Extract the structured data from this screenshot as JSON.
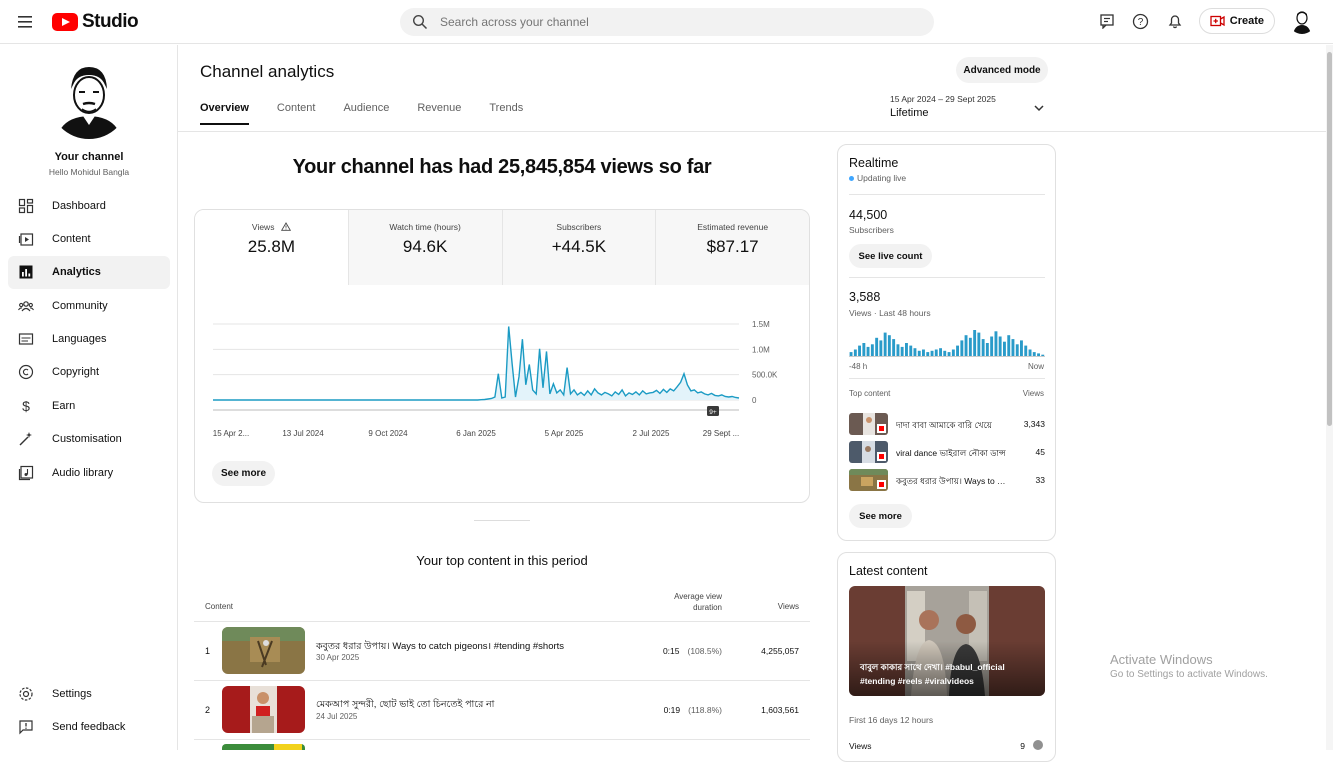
{
  "app": {
    "brand": "Studio",
    "search_placeholder": "Search across your channel",
    "create_label": "Create"
  },
  "sidebar": {
    "channel_name": "Your channel",
    "channel_handle": "Hello Mohidul Bangla",
    "items": [
      {
        "label": "Dashboard",
        "icon": "dashboard-icon"
      },
      {
        "label": "Content",
        "icon": "content-icon"
      },
      {
        "label": "Analytics",
        "icon": "analytics-icon",
        "active": true
      },
      {
        "label": "Community",
        "icon": "community-icon"
      },
      {
        "label": "Languages",
        "icon": "languages-icon"
      },
      {
        "label": "Copyright",
        "icon": "copyright-icon"
      },
      {
        "label": "Earn",
        "icon": "earn-icon"
      },
      {
        "label": "Customisation",
        "icon": "customisation-icon"
      },
      {
        "label": "Audio library",
        "icon": "audio-library-icon"
      }
    ],
    "bottom_items": [
      {
        "label": "Settings",
        "icon": "gear-icon"
      },
      {
        "label": "Send feedback",
        "icon": "feedback-icon"
      }
    ]
  },
  "header": {
    "title": "Channel analytics",
    "advanced_mode": "Advanced mode",
    "tabs": [
      "Overview",
      "Content",
      "Audience",
      "Revenue",
      "Trends"
    ],
    "date_range": "15 Apr 2024 – 29 Sept 2025",
    "period": "Lifetime"
  },
  "overview": {
    "headline": "Your channel has had 25,845,854 views so far",
    "metrics": [
      {
        "label": "Views",
        "value": "25.8M"
      },
      {
        "label": "Watch time (hours)",
        "value": "94.6K"
      },
      {
        "label": "Subscribers",
        "value": "+44.5K"
      },
      {
        "label": "Estimated revenue",
        "value": "$87.17"
      }
    ],
    "see_more": "See more",
    "badge": "9+"
  },
  "chart_data": {
    "type": "line",
    "x_tick_labels": [
      "15 Apr 2...",
      "13 Jul 2024",
      "9 Oct 2024",
      "6 Jan 2025",
      "5 Apr 2025",
      "2 Jul 2025",
      "29 Sept ..."
    ],
    "y_tick_labels": [
      "1.5M",
      "1.0M",
      "500.0K",
      "0"
    ],
    "ylim": [
      0,
      1500000
    ],
    "grid": true,
    "series": [
      {
        "values": [
          0,
          0,
          0,
          0,
          0,
          0,
          0,
          0,
          0,
          0,
          0,
          0,
          0,
          0,
          0,
          0,
          0,
          0,
          0,
          0,
          0,
          0,
          0,
          0,
          0,
          0,
          0,
          0,
          0,
          0,
          0,
          0,
          0,
          0,
          0,
          0,
          0,
          0,
          0,
          0,
          0,
          0,
          0,
          0,
          0,
          0,
          0,
          0,
          0,
          0,
          0,
          0,
          0,
          0,
          0,
          0,
          0,
          0,
          0,
          0,
          0,
          0,
          0,
          0,
          0,
          0,
          0,
          0,
          0,
          0,
          0,
          0,
          0,
          0,
          0,
          0,
          0,
          0,
          5000,
          10000,
          20000,
          30000,
          60000,
          520000,
          40000,
          60000,
          1450000,
          720000,
          60000,
          460000,
          1200000,
          300000,
          700000,
          200000,
          120000,
          1010000,
          240000,
          960000,
          120000,
          320000,
          140000,
          200000,
          100000,
          640000,
          120000,
          200000,
          100000,
          150000,
          90000,
          180000,
          100000,
          220000,
          140000,
          100000,
          150000,
          120000,
          80000,
          160000,
          110000,
          200000,
          80000,
          140000,
          110000,
          160000,
          100000,
          180000,
          120000,
          140000,
          150000,
          190000,
          130000,
          210000,
          150000,
          220000,
          180000,
          260000,
          350000,
          520000,
          300000,
          180000,
          200000,
          140000,
          160000,
          120000,
          100000,
          130000,
          90000,
          80000,
          100000,
          70000,
          60000,
          70000,
          50000,
          40000
        ]
      }
    ]
  },
  "top_content": {
    "title": "Your top content in this period",
    "col_content": "Content",
    "col_avg": "Average view duration",
    "col_views": "Views",
    "rows": [
      {
        "rank": "1",
        "title": "কবুতর ধরার উপায়। Ways to catch pigeons। #tending #shorts",
        "date": "30 Apr 2025",
        "avg": "0:15",
        "pct": "(108.5%)",
        "views": "4,255,057"
      },
      {
        "rank": "2",
        "title": "মেকআপ সুন্দরী, ছোট ভাই তো চিনতেই পারে না",
        "date": "24 Jul 2025",
        "avg": "0:19",
        "pct": "(118.8%)",
        "views": "1,603,561"
      }
    ]
  },
  "realtime": {
    "title": "Realtime",
    "status": "Updating live",
    "subscribers": "44,500",
    "subscribers_label": "Subscribers",
    "see_live": "See live count",
    "views": "3,588",
    "views_label": "Views · Last 48 hours",
    "axis_left": "-48 h",
    "axis_right": "Now",
    "bars": [
      3,
      5,
      8,
      10,
      7,
      9,
      14,
      12,
      18,
      16,
      13,
      9,
      7,
      10,
      8,
      6,
      4,
      5,
      3,
      4,
      5,
      6,
      4,
      3,
      5,
      8,
      12,
      16,
      14,
      20,
      18,
      13,
      10,
      15,
      19,
      15,
      11,
      16,
      13,
      9,
      12,
      8,
      5,
      3,
      2,
      1
    ],
    "top_content_label": "Top content",
    "top_views_label": "Views",
    "top_items": [
      {
        "title": "দাদা বাবা আমাকে বারি খেয়ে",
        "views": "3,343"
      },
      {
        "title": "viral dance ভাইরাল নৌকা ডান্স",
        "views": "45"
      },
      {
        "title": "কবুতর ধরার উপায়। Ways to catch",
        "views": "33"
      }
    ],
    "see_more": "See more"
  },
  "latest": {
    "title": "Latest content",
    "caption_line1": "বাবুল কাকার সাথে দেখা। #babul_official",
    "caption_line2": "#tending #reels #viralvideos",
    "since": "First 16 days 12 hours",
    "views_label": "Views",
    "views_value": "9"
  },
  "watermark": {
    "line1": "Activate Windows",
    "line2": "Go to Settings to activate Windows."
  },
  "colors": {
    "accent": "#065fd4",
    "chart_line": "#1b9bc4",
    "chart_fill": "#e3f3fa",
    "youtube_red": "#ff0000",
    "live_dot": "#3ea6ff"
  }
}
